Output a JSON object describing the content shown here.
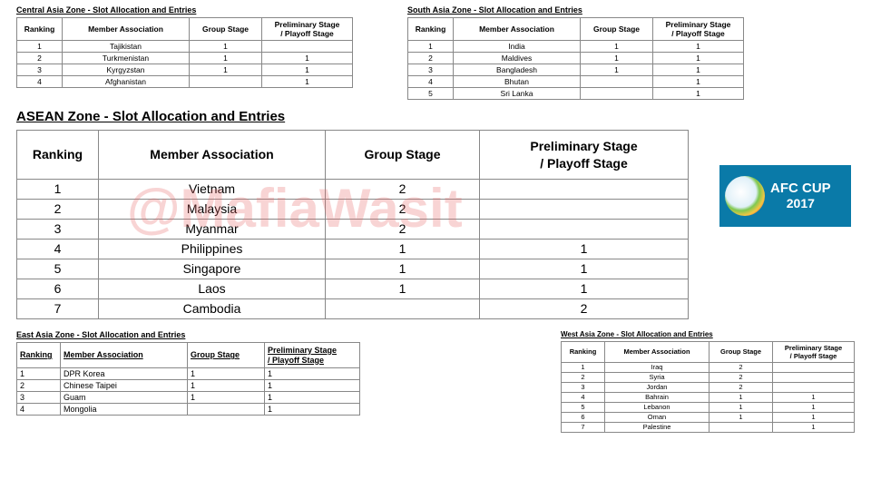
{
  "headers": {
    "ranking": "Ranking",
    "member": "Member Association",
    "group": "Group Stage",
    "prelim1": "Preliminary Stage",
    "prelim2": "/ Playoff Stage"
  },
  "watermark": "@MafiaWasit",
  "logo": {
    "brand": "AFC CUP",
    "year": "2017",
    "bg_color": "#0a7aa8"
  },
  "central": {
    "title": "Central Asia Zone - Slot Allocation and Entries",
    "rows": [
      {
        "rank": "1",
        "member": "Tajikistan",
        "group": "1",
        "prelim": ""
      },
      {
        "rank": "2",
        "member": "Turkmenistan",
        "group": "1",
        "prelim": "1"
      },
      {
        "rank": "3",
        "member": "Kyrgyzstan",
        "group": "1",
        "prelim": "1"
      },
      {
        "rank": "4",
        "member": "Afghanistan",
        "group": "",
        "prelim": "1"
      }
    ]
  },
  "south": {
    "title": "South Asia Zone - Slot Allocation and Entries",
    "rows": [
      {
        "rank": "1",
        "member": "India",
        "group": "1",
        "prelim": "1"
      },
      {
        "rank": "2",
        "member": "Maldives",
        "group": "1",
        "prelim": "1"
      },
      {
        "rank": "3",
        "member": "Bangladesh",
        "group": "1",
        "prelim": "1"
      },
      {
        "rank": "4",
        "member": "Bhutan",
        "group": "",
        "prelim": "1"
      },
      {
        "rank": "5",
        "member": "Sri Lanka",
        "group": "",
        "prelim": "1"
      }
    ]
  },
  "asean": {
    "title": "ASEAN Zone - Slot Allocation and Entries",
    "rows": [
      {
        "rank": "1",
        "member": "Vietnam",
        "group": "2",
        "prelim": ""
      },
      {
        "rank": "2",
        "member": "Malaysia",
        "group": "2",
        "prelim": ""
      },
      {
        "rank": "3",
        "member": "Myanmar",
        "group": "2",
        "prelim": ""
      },
      {
        "rank": "4",
        "member": "Philippines",
        "group": "1",
        "prelim": "1"
      },
      {
        "rank": "5",
        "member": "Singapore",
        "group": "1",
        "prelim": "1"
      },
      {
        "rank": "6",
        "member": "Laos",
        "group": "1",
        "prelim": "1"
      },
      {
        "rank": "7",
        "member": "Cambodia",
        "group": "",
        "prelim": "2"
      }
    ]
  },
  "east": {
    "title": "East Asia Zone - Slot Allocation and Entries",
    "rows": [
      {
        "rank": "1",
        "member": "DPR Korea",
        "group": "1",
        "prelim": "1"
      },
      {
        "rank": "2",
        "member": "Chinese Taipei",
        "group": "1",
        "prelim": "1"
      },
      {
        "rank": "3",
        "member": "Guam",
        "group": "1",
        "prelim": "1"
      },
      {
        "rank": "4",
        "member": "Mongolia",
        "group": "",
        "prelim": "1"
      }
    ]
  },
  "west": {
    "title": "West Asia Zone - Slot Allocation and Entries",
    "rows": [
      {
        "rank": "1",
        "member": "Iraq",
        "group": "2",
        "prelim": ""
      },
      {
        "rank": "2",
        "member": "Syria",
        "group": "2",
        "prelim": ""
      },
      {
        "rank": "3",
        "member": "Jordan",
        "group": "2",
        "prelim": ""
      },
      {
        "rank": "4",
        "member": "Bahrain",
        "group": "1",
        "prelim": "1"
      },
      {
        "rank": "5",
        "member": "Lebanon",
        "group": "1",
        "prelim": "1"
      },
      {
        "rank": "6",
        "member": "Oman",
        "group": "1",
        "prelim": "1"
      },
      {
        "rank": "7",
        "member": "Palestine",
        "group": "",
        "prelim": "1"
      }
    ]
  }
}
